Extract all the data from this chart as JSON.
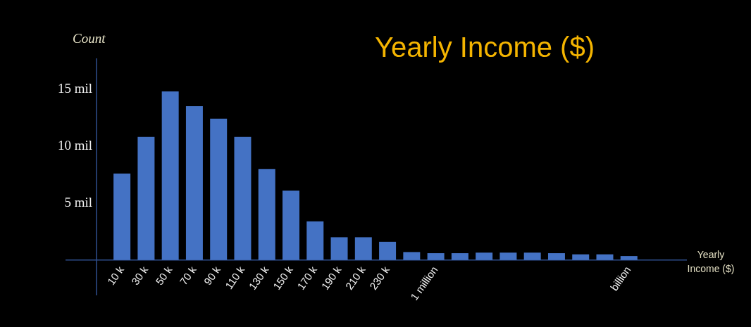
{
  "chart_data": {
    "type": "bar",
    "title": "Yearly Income ($)",
    "ylabel": "Count",
    "annotations": [
      "Yearly Income ($)"
    ],
    "categories": [
      "10 k",
      "30 k",
      "50 k",
      "70 k",
      "90 k",
      "110 k",
      "130 k",
      "150 k",
      "170 k",
      "190 k",
      "210 k",
      "230 k",
      null,
      "1 million",
      null,
      null,
      null,
      null,
      null,
      null,
      null,
      "billion"
    ],
    "values": [
      7.6,
      10.8,
      14.8,
      13.5,
      12.4,
      10.8,
      8.0,
      6.1,
      3.4,
      2.0,
      2.0,
      1.6,
      0.7,
      0.6,
      0.6,
      0.65,
      0.65,
      0.65,
      0.6,
      0.5,
      0.5,
      0.35
    ],
    "color": "#4472c4",
    "ylim": [
      -3.1,
      17.7
    ],
    "yticks": [
      {
        "value": 5,
        "label": "5 mil"
      },
      {
        "value": 10,
        "label": "10 mil"
      },
      {
        "value": 15,
        "label": "15 mil"
      }
    ]
  }
}
